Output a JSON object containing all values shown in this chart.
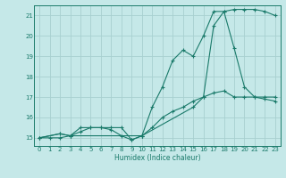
{
  "xlabel": "Humidex (Indice chaleur)",
  "xlim": [
    -0.5,
    23.5
  ],
  "ylim": [
    14.6,
    21.5
  ],
  "yticks": [
    15,
    16,
    17,
    18,
    19,
    20,
    21
  ],
  "xticks": [
    0,
    1,
    2,
    3,
    4,
    5,
    6,
    7,
    8,
    9,
    10,
    11,
    12,
    13,
    14,
    15,
    16,
    17,
    18,
    19,
    20,
    21,
    22,
    23
  ],
  "background_color": "#c5e8e8",
  "grid_color": "#a8d0d0",
  "line_color": "#1a7a6a",
  "line1_x": [
    0,
    1,
    2,
    3,
    4,
    5,
    6,
    7,
    8,
    9,
    10,
    11,
    12,
    13,
    14,
    15,
    16,
    17,
    18,
    19,
    20,
    21,
    22,
    23
  ],
  "line1_y": [
    15,
    15,
    15,
    15.1,
    15.3,
    15.5,
    15.5,
    15.4,
    15.1,
    14.9,
    15.1,
    15.5,
    16.0,
    16.3,
    16.5,
    16.8,
    17.0,
    17.2,
    17.3,
    17.0,
    17.0,
    17.0,
    16.9,
    16.8
  ],
  "line2_x": [
    0,
    2,
    3,
    4,
    5,
    6,
    7,
    8,
    9,
    10,
    11,
    12,
    13,
    14,
    15,
    16,
    17,
    18,
    19,
    20,
    21,
    22,
    23
  ],
  "line2_y": [
    15,
    15.2,
    15.1,
    15.5,
    15.5,
    15.5,
    15.5,
    15.5,
    14.9,
    15.1,
    16.5,
    17.5,
    18.8,
    19.3,
    19.0,
    20.0,
    21.2,
    21.2,
    19.4,
    17.5,
    17.0,
    17.0,
    17.0
  ],
  "line3_x": [
    0,
    2,
    3,
    10,
    15,
    16,
    17,
    18,
    19,
    20,
    21,
    22,
    23
  ],
  "line3_y": [
    15,
    15.2,
    15.1,
    15.1,
    16.5,
    17.0,
    20.5,
    21.2,
    21.3,
    21.3,
    21.3,
    21.2,
    21.0
  ]
}
